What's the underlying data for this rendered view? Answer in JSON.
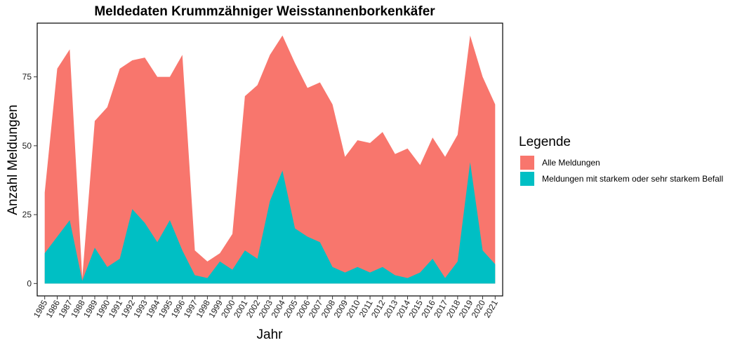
{
  "chart_data": {
    "type": "area",
    "title": "Meldedaten Krummzähniger Weisstannenborkenkäfer",
    "xlabel": "Jahr",
    "ylabel": "Anzahl Meldungen",
    "x": [
      "1985",
      "1986",
      "1987",
      "1988",
      "1989",
      "1990",
      "1991",
      "1992",
      "1993",
      "1994",
      "1995",
      "1996",
      "1997",
      "1998",
      "1999",
      "2000",
      "2001",
      "2002",
      "2003",
      "2004",
      "2005",
      "2006",
      "2007",
      "2008",
      "2009",
      "2010",
      "2011",
      "2012",
      "2013",
      "2014",
      "2015",
      "2016",
      "2017",
      "2018",
      "2019",
      "2020",
      "2021"
    ],
    "yticks": [
      0,
      25,
      50,
      75
    ],
    "ylim": [
      -4.5,
      94.5
    ],
    "grid": false,
    "legend_position": "right",
    "legend_title": "Legende",
    "series": [
      {
        "name": "Alle Meldungen",
        "color": "#F8766D",
        "values": [
          33,
          78,
          85,
          2,
          59,
          64,
          78,
          81,
          82,
          75,
          75,
          83,
          12,
          8,
          11,
          18,
          68,
          72,
          83,
          90,
          80,
          71,
          73,
          65,
          46,
          52,
          51,
          55,
          47,
          49,
          43,
          53,
          46,
          54,
          90,
          75,
          65
        ]
      },
      {
        "name": "Meldungen mit starkem oder sehr starkem Befall",
        "color": "#00BFC4",
        "values": [
          11,
          17,
          23,
          1,
          13,
          6,
          9,
          27,
          22,
          15,
          23,
          12,
          3,
          2,
          8,
          5,
          12,
          9,
          30,
          41,
          20,
          17,
          15,
          6,
          4,
          6,
          4,
          6,
          3,
          2,
          4,
          9,
          2,
          8,
          44,
          12,
          7
        ]
      }
    ]
  }
}
